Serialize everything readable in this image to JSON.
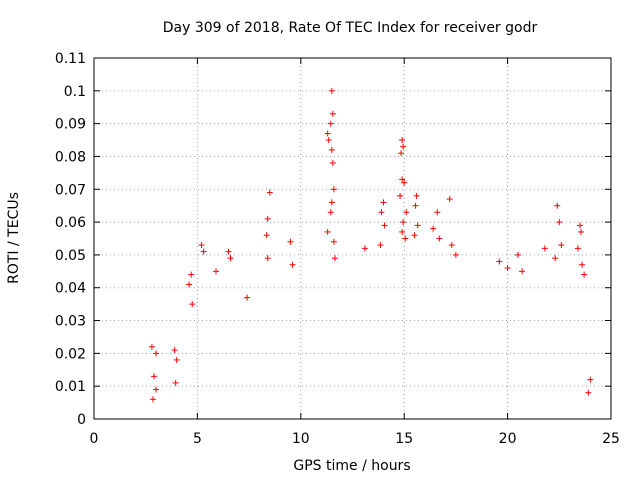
{
  "chart_data": {
    "type": "scatter",
    "title": "Day 309 of 2018, Rate Of TEC Index for receiver godr",
    "xlabel": "GPS time / hours",
    "ylabel": "ROTI / TECUs",
    "xlim": [
      0,
      25
    ],
    "ylim": [
      0,
      0.11
    ],
    "xticks": [
      0,
      5,
      10,
      15,
      20,
      25
    ],
    "yticks": [
      0,
      0.01,
      0.02,
      0.03,
      0.04,
      0.05,
      0.06,
      0.07,
      0.08,
      0.09,
      0.1,
      0.11
    ],
    "grid": true,
    "marker": "+",
    "color": "#ff0000",
    "series": [
      {
        "points": [
          [
            2.8,
            0.022
          ],
          [
            3.0,
            0.02
          ],
          [
            2.9,
            0.013
          ],
          [
            3.0,
            0.009
          ],
          [
            2.85,
            0.006
          ],
          [
            3.9,
            0.021
          ],
          [
            4.0,
            0.018
          ],
          [
            3.95,
            0.011
          ],
          [
            4.6,
            0.041
          ],
          [
            4.7,
            0.044
          ],
          [
            4.75,
            0.035
          ],
          [
            5.2,
            0.053
          ],
          [
            5.3,
            0.051
          ],
          [
            5.9,
            0.045
          ],
          [
            6.5,
            0.051
          ],
          [
            6.6,
            0.049
          ],
          [
            7.4,
            0.037
          ],
          [
            8.5,
            0.069
          ],
          [
            8.4,
            0.061
          ],
          [
            8.35,
            0.056
          ],
          [
            8.4,
            0.049
          ],
          [
            9.5,
            0.054
          ],
          [
            9.6,
            0.047
          ],
          [
            11.5,
            0.1
          ],
          [
            11.55,
            0.093
          ],
          [
            11.45,
            0.09
          ],
          [
            11.3,
            0.087
          ],
          [
            11.35,
            0.085
          ],
          [
            11.5,
            0.082
          ],
          [
            11.55,
            0.078
          ],
          [
            11.6,
            0.07
          ],
          [
            11.5,
            0.066
          ],
          [
            11.45,
            0.063
          ],
          [
            11.3,
            0.057
          ],
          [
            11.6,
            0.054
          ],
          [
            11.65,
            0.049
          ],
          [
            13.1,
            0.052
          ],
          [
            14.0,
            0.066
          ],
          [
            13.9,
            0.063
          ],
          [
            14.05,
            0.059
          ],
          [
            13.85,
            0.053
          ],
          [
            14.9,
            0.085
          ],
          [
            14.95,
            0.083
          ],
          [
            14.85,
            0.081
          ],
          [
            14.9,
            0.073
          ],
          [
            15.0,
            0.072
          ],
          [
            14.8,
            0.068
          ],
          [
            15.1,
            0.063
          ],
          [
            14.95,
            0.06
          ],
          [
            14.9,
            0.057
          ],
          [
            15.05,
            0.055
          ],
          [
            15.6,
            0.068
          ],
          [
            15.55,
            0.065
          ],
          [
            15.65,
            0.059
          ],
          [
            15.5,
            0.056
          ],
          [
            16.4,
            0.058
          ],
          [
            16.6,
            0.063
          ],
          [
            16.7,
            0.055
          ],
          [
            17.2,
            0.067
          ],
          [
            17.3,
            0.053
          ],
          [
            17.5,
            0.05
          ],
          [
            19.6,
            0.048
          ],
          [
            20.0,
            0.046
          ],
          [
            20.5,
            0.05
          ],
          [
            20.7,
            0.045
          ],
          [
            21.8,
            0.052
          ],
          [
            22.4,
            0.065
          ],
          [
            22.5,
            0.06
          ],
          [
            22.6,
            0.053
          ],
          [
            22.3,
            0.049
          ],
          [
            23.5,
            0.059
          ],
          [
            23.55,
            0.057
          ],
          [
            23.4,
            0.052
          ],
          [
            23.6,
            0.047
          ],
          [
            23.7,
            0.044
          ],
          [
            23.9,
            0.008
          ],
          [
            24.0,
            0.012
          ]
        ]
      }
    ]
  }
}
